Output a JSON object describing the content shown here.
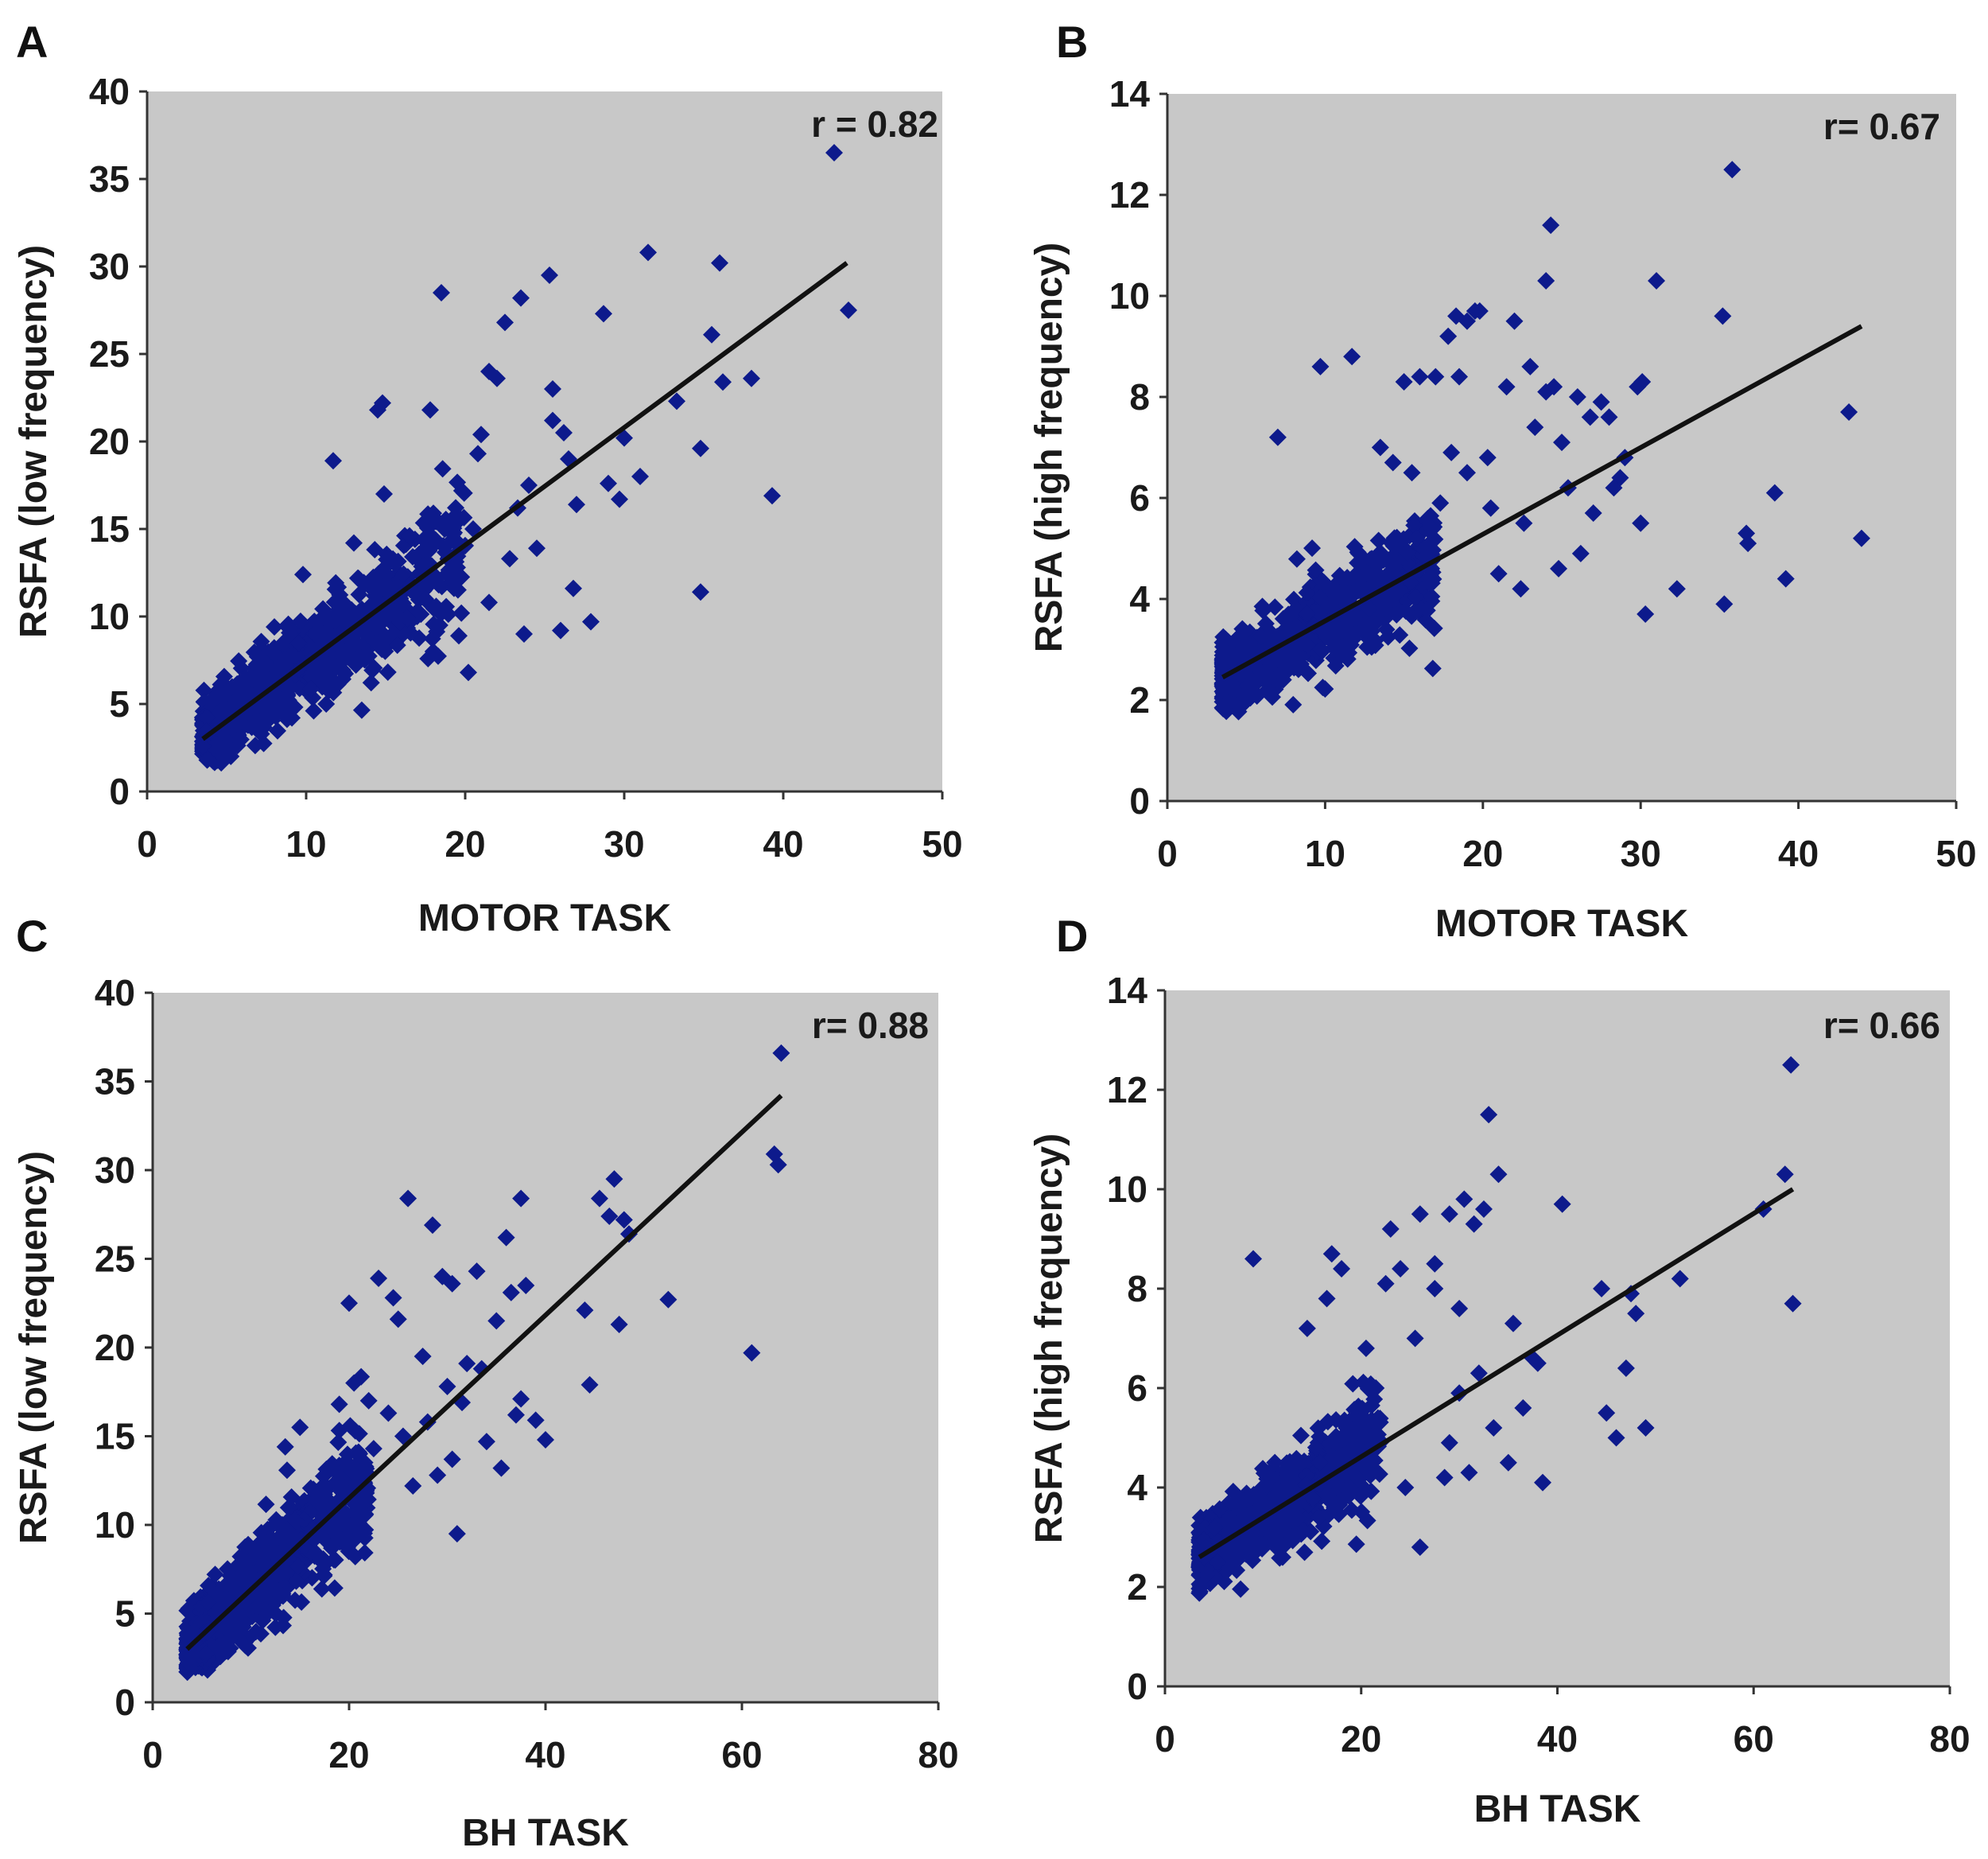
{
  "figure": {
    "panels": [
      {
        "letter": "A",
        "r_text": "r = 0.82"
      },
      {
        "letter": "B",
        "r_text": "r= 0.67"
      },
      {
        "letter": "C",
        "r_text": "r= 0.88"
      },
      {
        "letter": "D",
        "r_text": "r= 0.66"
      }
    ]
  },
  "chart_data": [
    {
      "type": "scatter",
      "panel": "A",
      "xlabel": "MOTOR TASK",
      "ylabel": "RSFA (low frequency)",
      "xlim": [
        0,
        50
      ],
      "ylim": [
        0,
        40
      ],
      "xticks": [
        0,
        10,
        20,
        30,
        40,
        50
      ],
      "yticks": [
        0,
        5,
        10,
        15,
        20,
        25,
        30,
        35,
        40
      ],
      "annotation": "r = 0.82",
      "fit_line": {
        "x": [
          3.5,
          44
        ],
        "y": [
          3.0,
          30.2
        ]
      },
      "points": {
        "x": [
          43.2,
          44.1,
          31.5,
          36.0,
          25.3,
          18.5,
          23.5,
          22.5,
          28.7,
          21.5,
          14.8,
          14.5,
          25.5,
          38.0,
          35.5,
          36.2,
          33.3,
          34.8,
          39.3,
          29.7,
          29.0,
          27.0,
          27.9,
          26.0,
          34.8,
          22.0,
          21.0,
          17.8,
          11.7,
          14.9,
          25.5,
          26.2,
          20.8,
          24.0,
          26.5,
          30.0,
          31.0,
          23.3,
          20.5,
          16.5,
          18.0,
          19.5,
          17.5,
          22.8,
          20.2,
          13.0,
          9.8,
          24.5,
          21.5,
          19.6,
          23.7,
          26.8
        ],
        "y": [
          36.5,
          27.5,
          30.8,
          30.2,
          29.5,
          28.5,
          28.2,
          26.8,
          27.3,
          24.0,
          22.2,
          21.8,
          23.0,
          23.6,
          26.1,
          23.4,
          22.3,
          19.6,
          16.9,
          16.7,
          17.6,
          16.4,
          9.7,
          9.2,
          11.4,
          23.6,
          20.4,
          21.8,
          18.9,
          17.0,
          21.2,
          20.5,
          19.3,
          17.5,
          19.0,
          20.2,
          18.0,
          16.2,
          15.0,
          14.6,
          15.9,
          12.8,
          11.0,
          13.3,
          6.8,
          14.2,
          12.4,
          13.9,
          10.8,
          8.9,
          9.0,
          11.6
        ]
      },
      "cloud": {
        "x_range": [
          3.5,
          20
        ],
        "y_spread": 3.2
      }
    },
    {
      "type": "scatter",
      "panel": "B",
      "xlabel": "MOTOR TASK",
      "ylabel": "RSFA (high frequency)",
      "xlim": [
        0,
        50
      ],
      "ylim": [
        0,
        14
      ],
      "xticks": [
        0,
        10,
        20,
        30,
        40,
        50
      ],
      "yticks": [
        0,
        2,
        4,
        6,
        8,
        10,
        12,
        14
      ],
      "annotation": "r= 0.67",
      "fit_line": {
        "x": [
          3.5,
          44
        ],
        "y": [
          2.45,
          9.4
        ]
      },
      "points": {
        "x": [
          35.8,
          24.3,
          24.0,
          31.0,
          35.2,
          43.2,
          44.0,
          38.5,
          36.7,
          36.8,
          39.2,
          32.3,
          30.3,
          35.3,
          18.3,
          19.0,
          19.5,
          17.8,
          19.8,
          22.0,
          23.0,
          24.5,
          26.0,
          28.0,
          27.5,
          29.8,
          30.1,
          25.0,
          26.8,
          23.3,
          18.5,
          21.5,
          24.0,
          17.0,
          16.0,
          15.0,
          9.7,
          11.7,
          7.0,
          13.5,
          15.5,
          14.3,
          30.0,
          28.7,
          28.3,
          24.8,
          26.2,
          22.4,
          20.5,
          21.0,
          18.0,
          19.0,
          20.3,
          22.6,
          25.4,
          27.0,
          29.0,
          15.8,
          17.3
        ],
        "y": [
          12.5,
          11.4,
          10.3,
          10.3,
          9.6,
          7.7,
          5.2,
          6.1,
          5.3,
          5.1,
          4.4,
          4.2,
          3.7,
          3.9,
          9.6,
          9.5,
          9.7,
          9.2,
          9.7,
          9.5,
          8.6,
          8.2,
          8.0,
          7.6,
          7.9,
          8.2,
          8.3,
          7.1,
          7.6,
          7.4,
          8.4,
          8.2,
          8.1,
          8.4,
          8.4,
          8.3,
          8.6,
          8.8,
          7.2,
          7.0,
          6.5,
          6.7,
          5.5,
          6.4,
          6.2,
          4.6,
          4.9,
          4.2,
          5.8,
          4.5,
          6.9,
          6.5,
          6.8,
          5.5,
          6.2,
          5.7,
          6.8,
          5.2,
          5.9
        ]
      },
      "cloud": {
        "x_range": [
          3.5,
          17
        ],
        "y_spread": 1.0
      }
    },
    {
      "type": "scatter",
      "panel": "C",
      "xlabel": "BH TASK",
      "ylabel": "RSFA (low frequency)",
      "xlim": [
        0,
        80
      ],
      "ylim": [
        0,
        40
      ],
      "xticks": [
        0,
        20,
        40,
        60,
        80
      ],
      "yticks": [
        0,
        5,
        10,
        15,
        20,
        25,
        30,
        35,
        40
      ],
      "annotation": "r= 0.88",
      "fit_line": {
        "x": [
          3.5,
          64
        ],
        "y": [
          3.0,
          34.2
        ]
      },
      "points": {
        "x": [
          64.0,
          63.3,
          63.7,
          61.0,
          52.5,
          47.0,
          48.0,
          48.5,
          45.5,
          46.5,
          47.5,
          44.0,
          37.5,
          36.0,
          33.0,
          36.5,
          38.0,
          35.0,
          26.0,
          28.5,
          30.5,
          29.5,
          20.0,
          24.5,
          25.0,
          23.0,
          32.0,
          30.0,
          28.0,
          22.0,
          24.0,
          20.5,
          19.0,
          17.5,
          31.0,
          34.0,
          37.5,
          40.0,
          39.0,
          44.5,
          26.5,
          31.5,
          33.5,
          21.0,
          15.0,
          13.5,
          27.5,
          25.5,
          22.5,
          29.0,
          30.5,
          35.5,
          37.0
        ],
        "y": [
          36.6,
          30.9,
          30.3,
          19.7,
          22.7,
          29.5,
          27.2,
          26.4,
          28.4,
          27.4,
          21.3,
          22.1,
          28.4,
          26.2,
          24.3,
          23.1,
          23.5,
          21.5,
          28.4,
          26.9,
          23.6,
          24.0,
          22.5,
          22.8,
          21.6,
          23.9,
          19.1,
          17.8,
          15.8,
          17.0,
          16.3,
          18.0,
          16.8,
          12.0,
          9.5,
          14.7,
          17.1,
          14.8,
          15.9,
          17.9,
          12.2,
          16.9,
          18.8,
          13.0,
          15.5,
          14.4,
          19.5,
          15.0,
          14.3,
          12.8,
          13.7,
          13.2,
          16.2
        ]
      },
      "cloud": {
        "x_range": [
          3.5,
          22
        ],
        "y_spread": 3.0
      }
    },
    {
      "type": "scatter",
      "panel": "D",
      "xlabel": "BH TASK",
      "ylabel": "RSFA (high frequency)",
      "xlim": [
        0,
        80
      ],
      "ylim": [
        0,
        14
      ],
      "xticks": [
        0,
        20,
        40,
        60,
        80
      ],
      "yticks": [
        0,
        2,
        4,
        6,
        8,
        10,
        12,
        14
      ],
      "annotation": "r= 0.66",
      "fit_line": {
        "x": [
          3.5,
          64
        ],
        "y": [
          2.6,
          10.0
        ]
      },
      "points": {
        "x": [
          63.8,
          63.2,
          64.0,
          61.0,
          52.5,
          47.5,
          48.0,
          47.0,
          44.5,
          46.0,
          49.0,
          45.0,
          38.5,
          40.5,
          33.0,
          34.0,
          32.5,
          30.5,
          31.5,
          29.0,
          27.5,
          26.0,
          23.0,
          24.0,
          22.5,
          27.5,
          30.0,
          25.5,
          20.5,
          18.0,
          17.0,
          9.0,
          16.5,
          14.5,
          35.5,
          37.5,
          38.0,
          32.0,
          30.0,
          36.5,
          31.0,
          28.5,
          24.5,
          26.0,
          29.0,
          20.0,
          21.5,
          33.5,
          35.0
        ],
        "y": [
          12.5,
          10.3,
          7.7,
          9.6,
          8.2,
          7.9,
          7.5,
          6.4,
          8.0,
          5.0,
          5.2,
          5.5,
          4.1,
          9.7,
          11.5,
          10.3,
          9.6,
          9.8,
          9.3,
          9.5,
          8.5,
          9.5,
          9.2,
          8.4,
          8.1,
          8.0,
          7.6,
          7.0,
          6.8,
          8.4,
          8.7,
          8.6,
          7.8,
          7.2,
          7.3,
          6.6,
          6.5,
          6.3,
          5.9,
          5.6,
          4.3,
          4.2,
          4.0,
          2.8,
          4.9,
          5.2,
          6.0,
          5.2,
          4.5
        ]
      },
      "cloud": {
        "x_range": [
          3.5,
          22
        ],
        "y_spread": 1.0
      }
    }
  ]
}
